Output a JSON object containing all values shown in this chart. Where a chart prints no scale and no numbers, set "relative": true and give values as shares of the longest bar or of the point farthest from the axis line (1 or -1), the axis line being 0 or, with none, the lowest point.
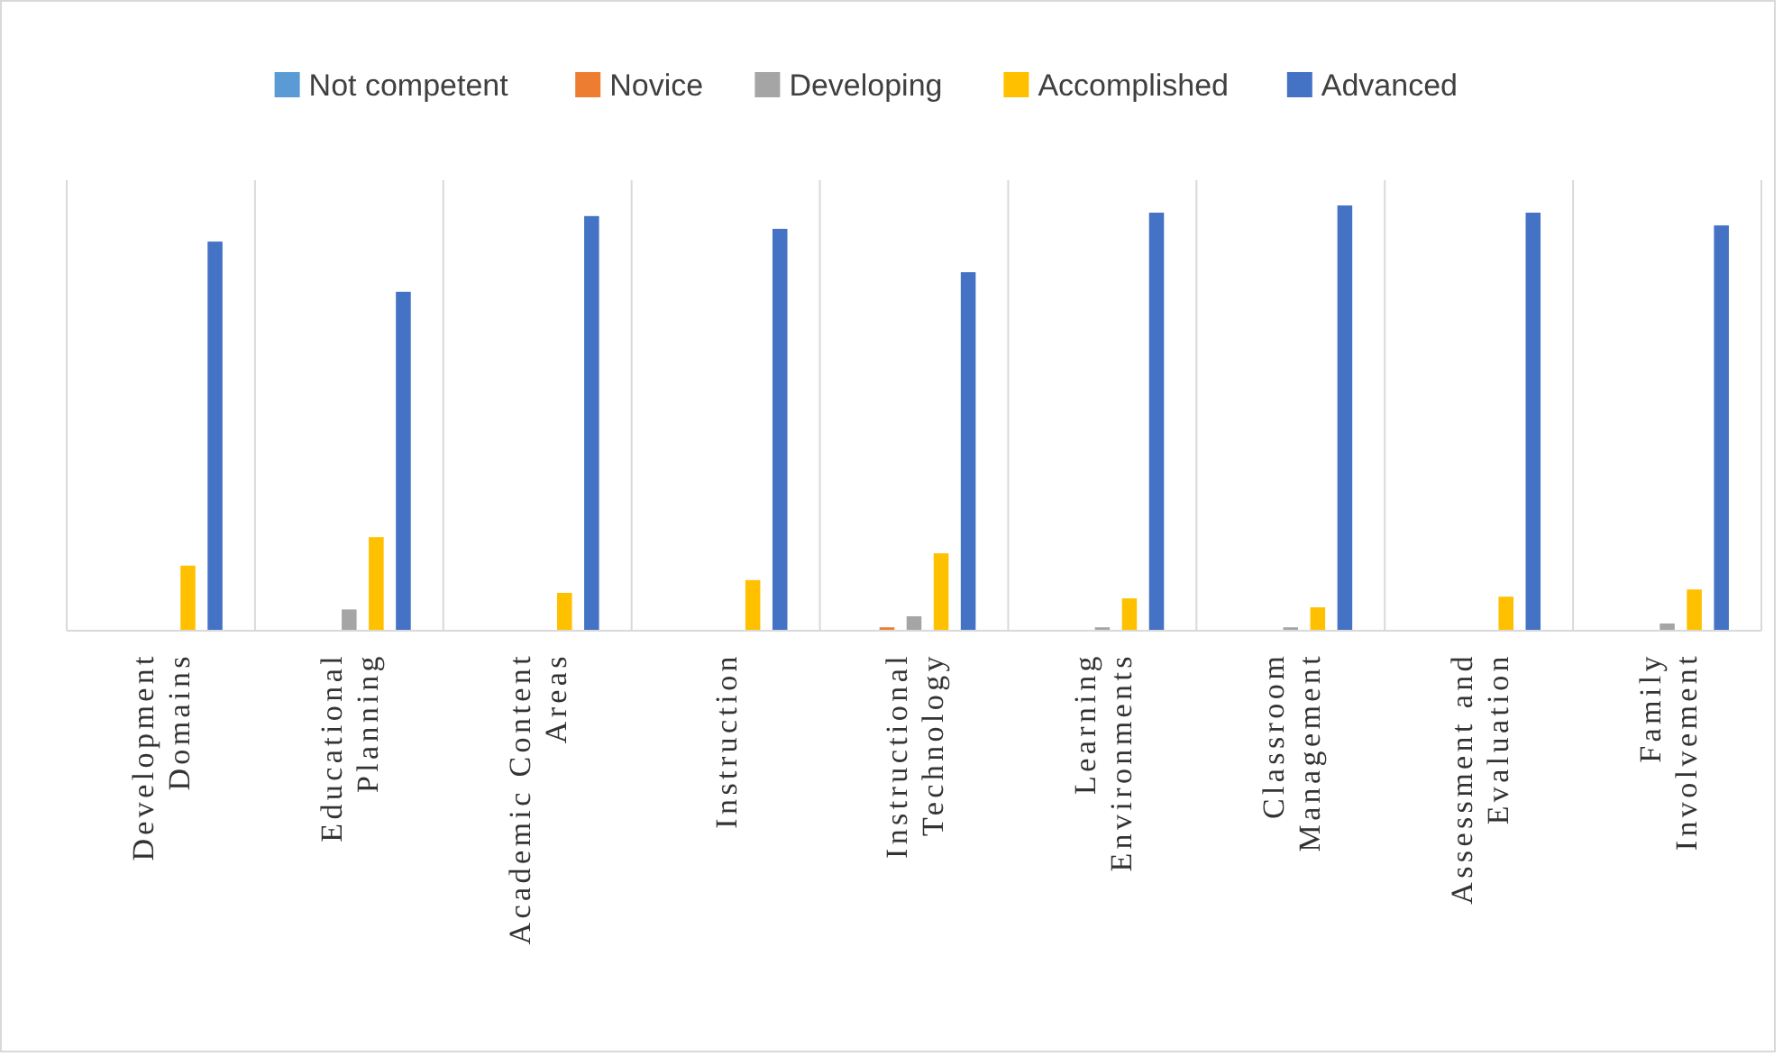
{
  "chart_data": {
    "type": "bar",
    "relative": true,
    "grid": "x",
    "legend": "top",
    "categories": [
      "Development Domains",
      "Educational Planning",
      "Academic Content Areas",
      "Instruction",
      "Instructional Technology",
      "Learning Environments",
      "Classroom Management",
      "Assessment and Evaluation",
      "Family Involvement"
    ],
    "series": [
      {
        "name": "Not competent",
        "color": "#5b9bd5",
        "values": [
          0,
          0,
          0,
          0,
          0,
          0,
          0,
          0,
          0
        ]
      },
      {
        "name": "Novice",
        "color": "#ed7d31",
        "values": [
          0,
          0,
          0,
          0,
          0.008,
          0,
          0,
          0,
          0
        ]
      },
      {
        "name": "Developing",
        "color": "#a5a5a5",
        "values": [
          0,
          0.05,
          0,
          0,
          0.034,
          0.008,
          0.008,
          0,
          0.017
        ]
      },
      {
        "name": "Accomplished",
        "color": "#ffc000",
        "values": [
          0.153,
          0.22,
          0.089,
          0.119,
          0.182,
          0.076,
          0.055,
          0.08,
          0.097
        ]
      },
      {
        "name": "Advanced",
        "color": "#4472c4",
        "values": [
          0.915,
          0.797,
          0.975,
          0.945,
          0.843,
          0.983,
          1,
          0.983,
          0.953
        ]
      }
    ]
  }
}
